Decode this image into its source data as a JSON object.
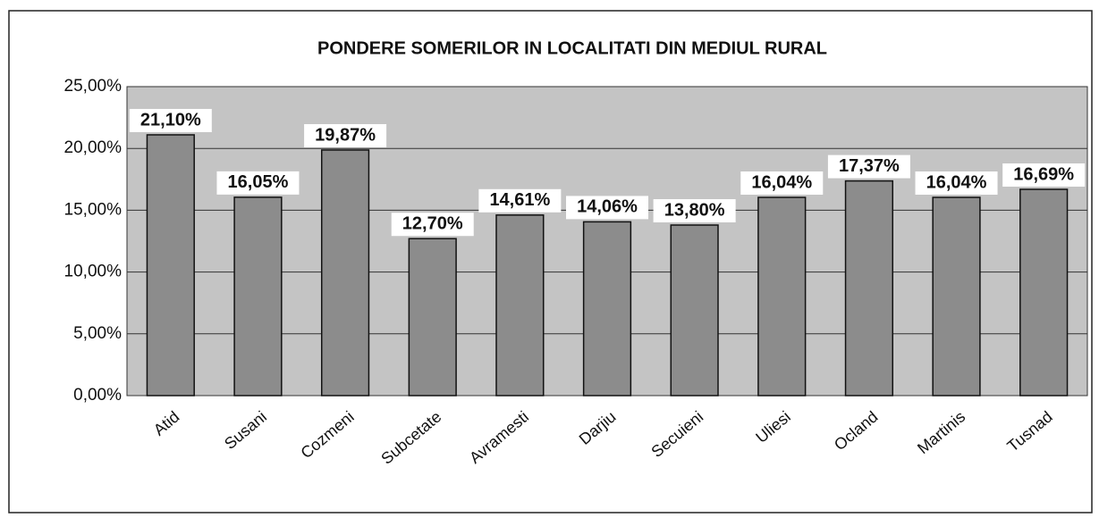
{
  "chart_data": {
    "type": "bar",
    "title": "PONDERE SOMERILOR IN LOCALITATI DIN MEDIUL RURAL",
    "categories": [
      "Atid",
      "Susani",
      "Cozmeni",
      "Subcetate",
      "Avramesti",
      "Darjiu",
      "Secuieni",
      "Uliesi",
      "Ocland",
      "Martinis",
      "Tusnad"
    ],
    "values": [
      21.1,
      16.05,
      19.87,
      12.7,
      14.61,
      14.06,
      13.8,
      16.04,
      17.37,
      16.04,
      16.69
    ],
    "value_labels": [
      "21,10%",
      "16,05%",
      "19,87%",
      "12,70%",
      "14,61%",
      "14,06%",
      "13,80%",
      "16,04%",
      "17,37%",
      "16,04%",
      "16,69%"
    ],
    "color": "#8c8c8c",
    "ylim": [
      0,
      25
    ],
    "yticks": [
      {
        "value": 0,
        "label": "0,00%"
      },
      {
        "value": 5,
        "label": "5,00%"
      },
      {
        "value": 10,
        "label": "10,00%"
      },
      {
        "value": 15,
        "label": "15,00%"
      },
      {
        "value": 20,
        "label": "20,00%"
      },
      {
        "value": 25,
        "label": "25,00%"
      }
    ],
    "grid": true
  }
}
